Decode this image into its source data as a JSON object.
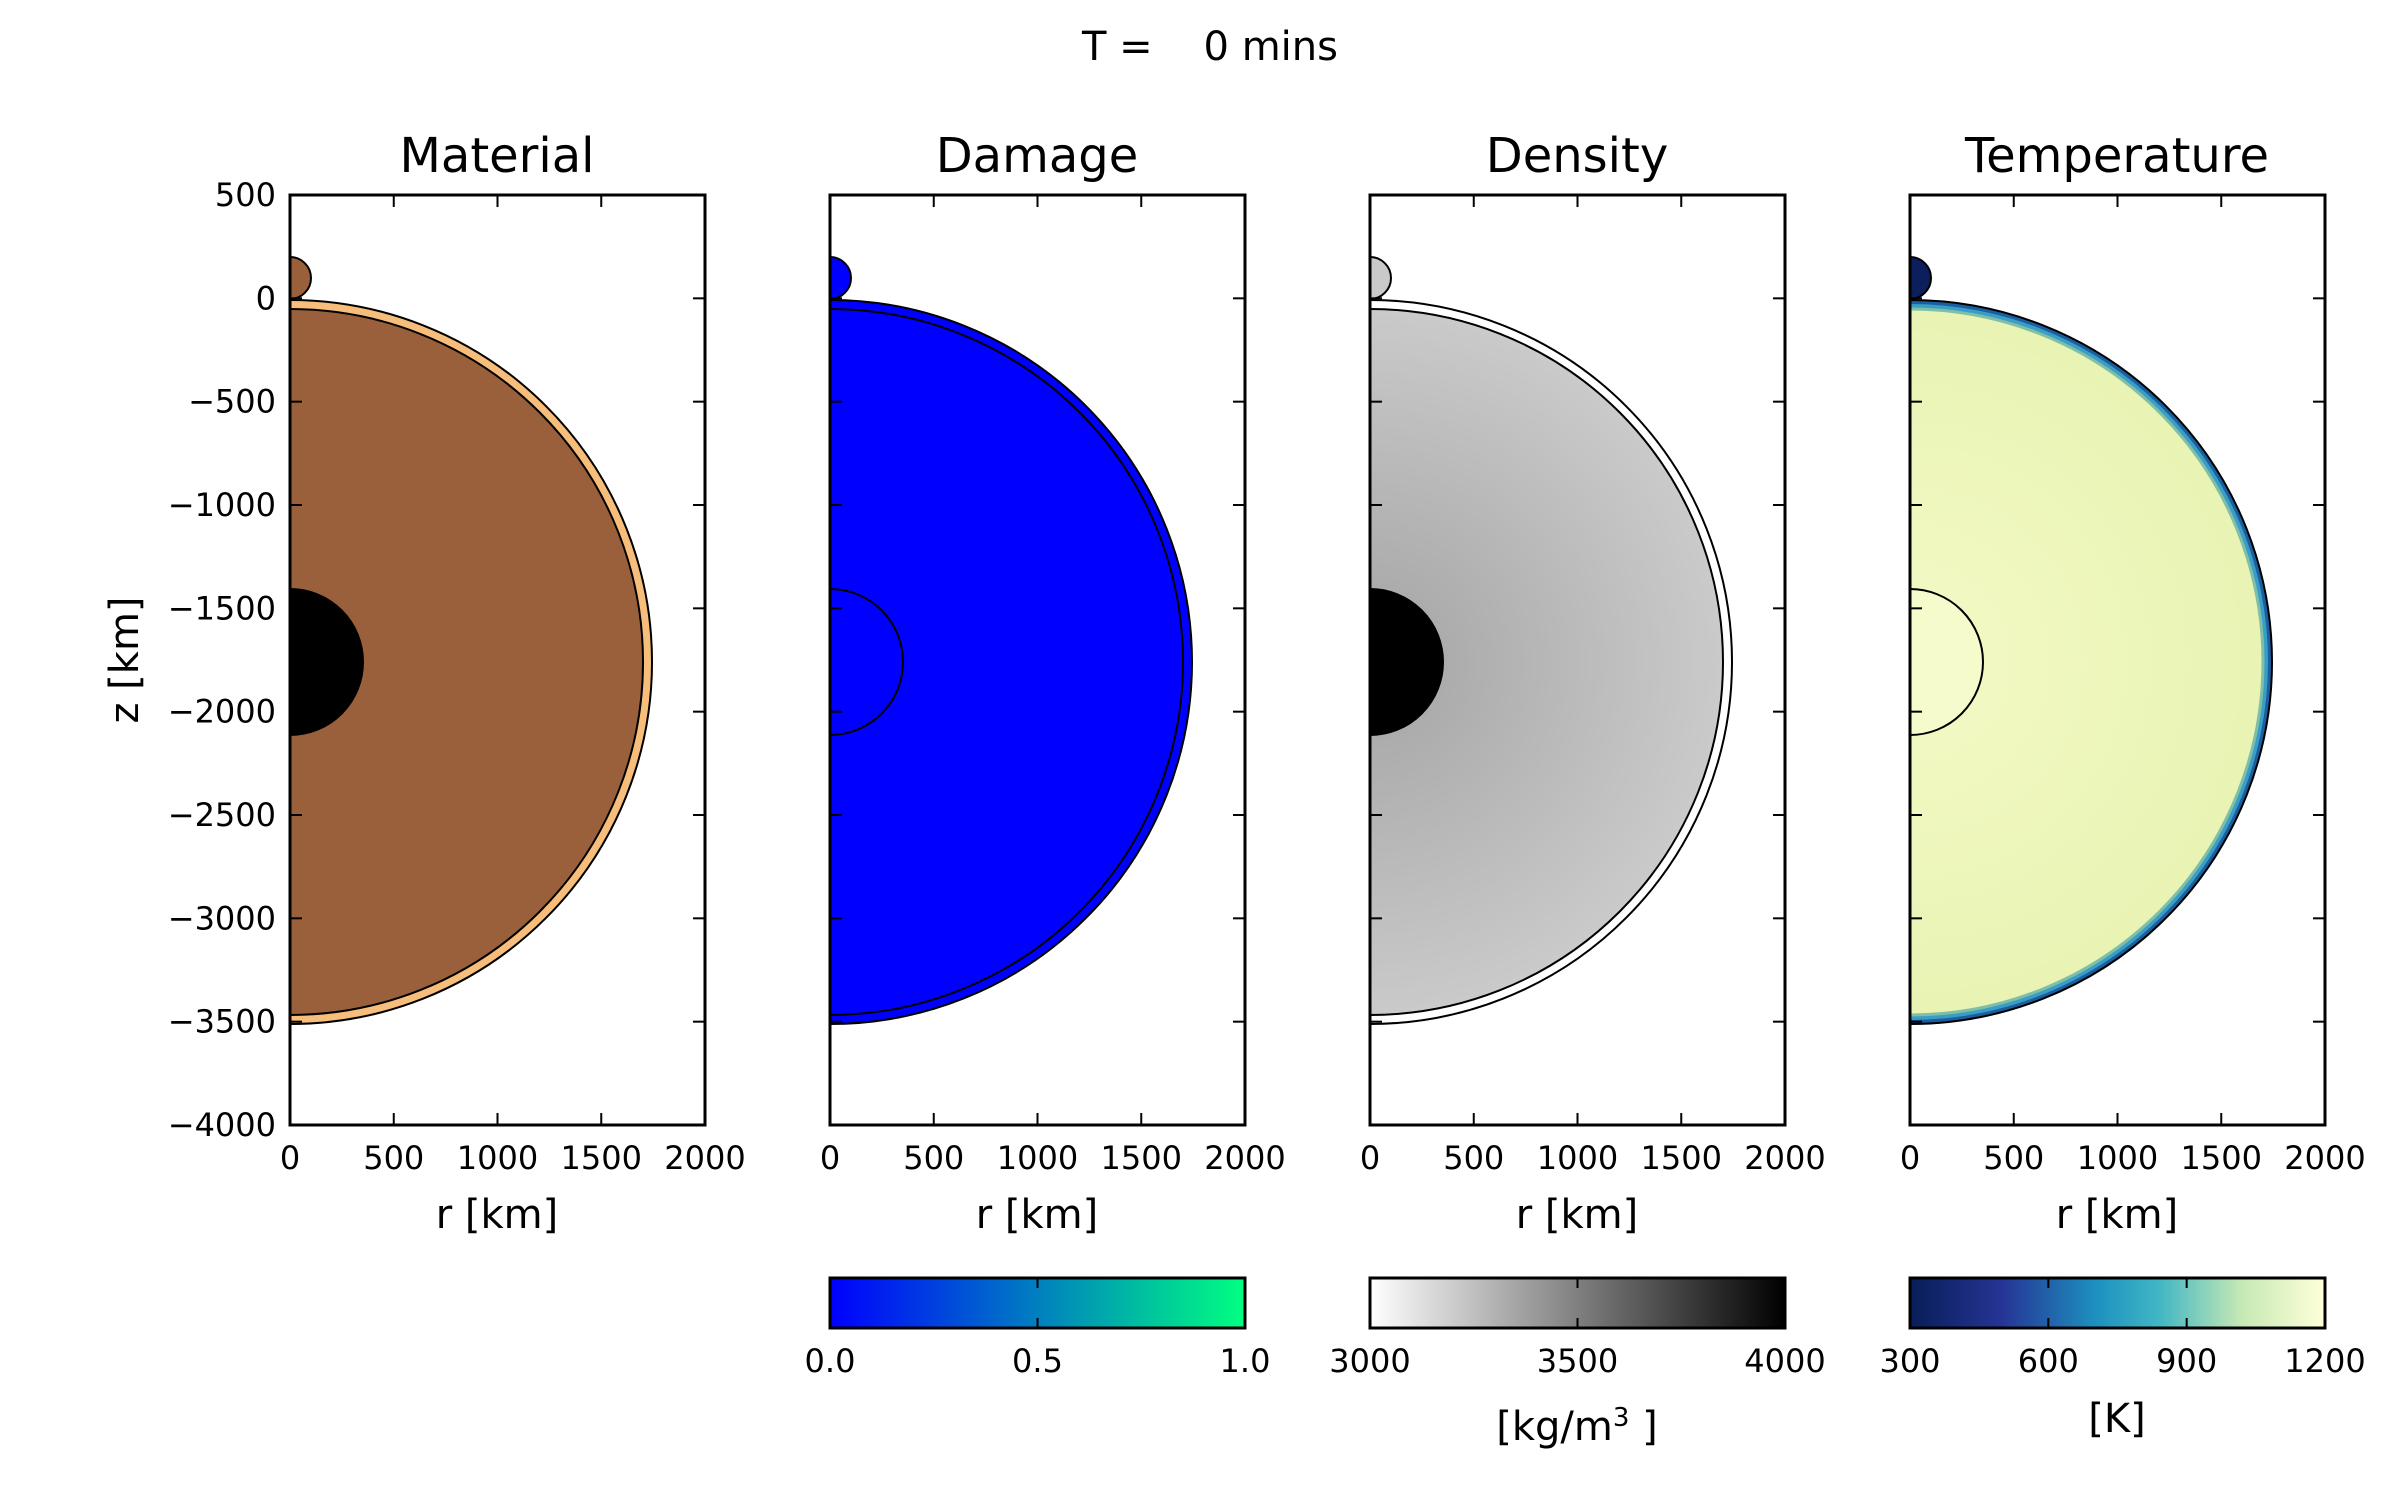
{
  "figure": {
    "title": "T =    0 mins"
  },
  "chart_data": [
    {
      "type": "heatmap",
      "title": "Material",
      "xlabel": "r [km]",
      "ylabel": "z [km]",
      "xlim": [
        0,
        2000
      ],
      "ylim": [
        -4000,
        500
      ],
      "xticks": [
        0,
        500,
        1000,
        1500,
        2000
      ],
      "yticks": [
        500,
        0,
        -500,
        -1000,
        -1500,
        -2000,
        -2500,
        -3000,
        -3500,
        -4000
      ],
      "xtick_labels": [
        "0",
        "500",
        "1000",
        "1500",
        "2000"
      ],
      "ytick_labels": [
        "500",
        "0",
        "−500",
        "−1000",
        "−1500",
        "−2000",
        "−2500",
        "−3000",
        "−3500",
        "−4000"
      ],
      "colors": {
        "mantle": "#9a603b",
        "crust": "#f7bd7a",
        "core": "#000000",
        "impactor": "#9a603b"
      }
    },
    {
      "type": "heatmap",
      "title": "Damage",
      "xlabel": "r [km]",
      "xlim": [
        0,
        2000
      ],
      "ylim": [
        -4000,
        500
      ],
      "xticks": [
        0,
        500,
        1000,
        1500,
        2000
      ],
      "xtick_labels": [
        "0",
        "500",
        "1000",
        "1500",
        "2000"
      ],
      "colorbar": {
        "ticks": [
          "0.0",
          "0.5",
          "1.0"
        ],
        "range": [
          0.0,
          1.0
        ],
        "label": "",
        "colors": [
          "#0000ff",
          "#00ff80"
        ]
      },
      "colors": {
        "fill": "#0000ff"
      }
    },
    {
      "type": "heatmap",
      "title": "Density",
      "xlabel": "r [km]",
      "xlim": [
        0,
        2000
      ],
      "ylim": [
        -4000,
        500
      ],
      "xticks": [
        0,
        500,
        1000,
        1500,
        2000
      ],
      "xtick_labels": [
        "0",
        "500",
        "1000",
        "1500",
        "2000"
      ],
      "colorbar": {
        "ticks": [
          "3000",
          "3500",
          "4000"
        ],
        "range": [
          3000,
          4000
        ],
        "label": "[kg/m",
        "label_sup": "3",
        "label_end": " ]",
        "colors": [
          "#ffffff",
          "#000000"
        ]
      },
      "colors": {
        "inner": "#a6a6a6",
        "outer": "#c9c9c9",
        "crust": "#ffffff",
        "core": "#000000"
      }
    },
    {
      "type": "heatmap",
      "title": "Temperature",
      "xlabel": "r [km]",
      "xlim": [
        0,
        2000
      ],
      "ylim": [
        -4000,
        500
      ],
      "xticks": [
        0,
        500,
        1000,
        1500,
        2000
      ],
      "xtick_labels": [
        "0",
        "500",
        "1000",
        "1500",
        "2000"
      ],
      "colorbar": {
        "ticks": [
          "300",
          "600",
          "900",
          "1200"
        ],
        "range": [
          300,
          1200
        ],
        "label": "[K]",
        "colors": [
          "#081d58",
          "#253494",
          "#1d91c0",
          "#41b6c4",
          "#c7e9b4",
          "#ffffd9"
        ]
      },
      "colors": {
        "interior": "#ecf5b7",
        "core": "#f6fbcc",
        "rim": "#2b83ba",
        "impactor": "#0c1f5c"
      }
    }
  ]
}
